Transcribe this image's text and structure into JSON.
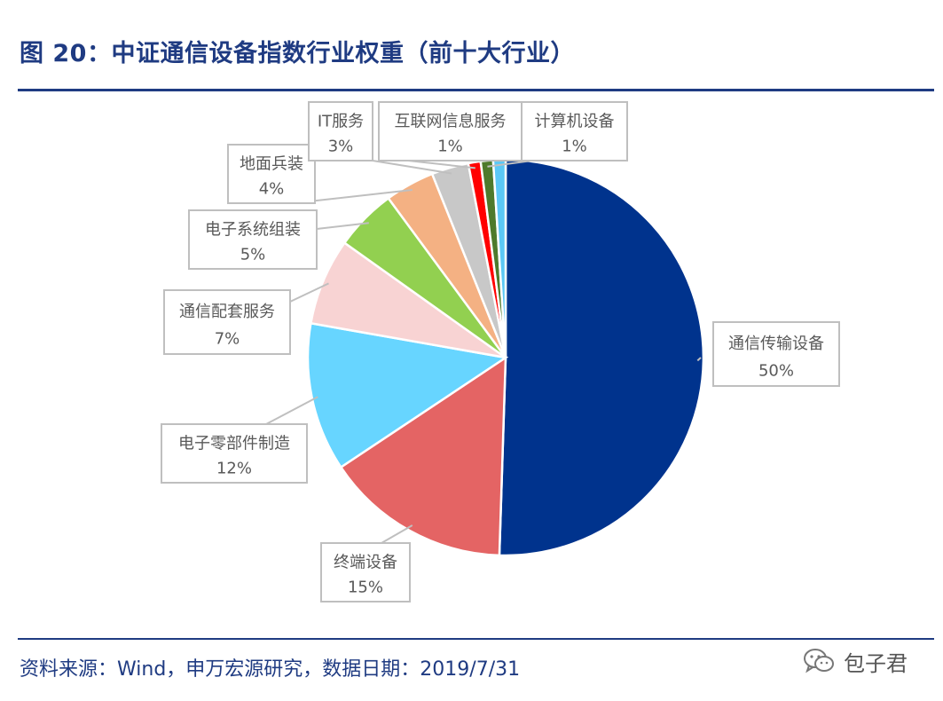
{
  "figure": {
    "title": "图 20：中证通信设备指数行业权重（前十大行业）",
    "source": "资料来源：Wind，申万宏源研究，数据日期：2019/7/31",
    "watermark": "包子君"
  },
  "chart_data": {
    "type": "pie",
    "title": "",
    "slices": [
      {
        "label": "通信传输设备",
        "value": 50,
        "display": "50%",
        "color": "#00338d"
      },
      {
        "label": "终端设备",
        "value": 15,
        "display": "15%",
        "color": "#e46464"
      },
      {
        "label": "电子零部件制造",
        "value": 12,
        "display": "12%",
        "color": "#67d5ff"
      },
      {
        "label": "通信配套服务",
        "value": 7,
        "display": "7%",
        "color": "#f8d3d3"
      },
      {
        "label": "电子系统组装",
        "value": 5,
        "display": "5%",
        "color": "#92d050"
      },
      {
        "label": "地面兵装",
        "value": 4,
        "display": "4%",
        "color": "#f4b183"
      },
      {
        "label": "IT服务",
        "value": 3,
        "display": "3%",
        "color": "#c8c8c8"
      },
      {
        "label": "互联网信息服务",
        "value": 1,
        "display": "1%",
        "color": "#ff0000"
      },
      {
        "label": "计算机设备",
        "value": 1,
        "display": "1%",
        "color": "#4e7a2c"
      },
      {
        "label": "",
        "value": 1,
        "display": "",
        "color": "#5bc8f5"
      }
    ],
    "legend": "none",
    "data_labels": "callouts"
  },
  "colors": {
    "accent": "#1f3b82",
    "label_text": "#595959",
    "callout_border": "#bfbfbf"
  },
  "icons": {
    "watermark": "wechat-icon"
  }
}
